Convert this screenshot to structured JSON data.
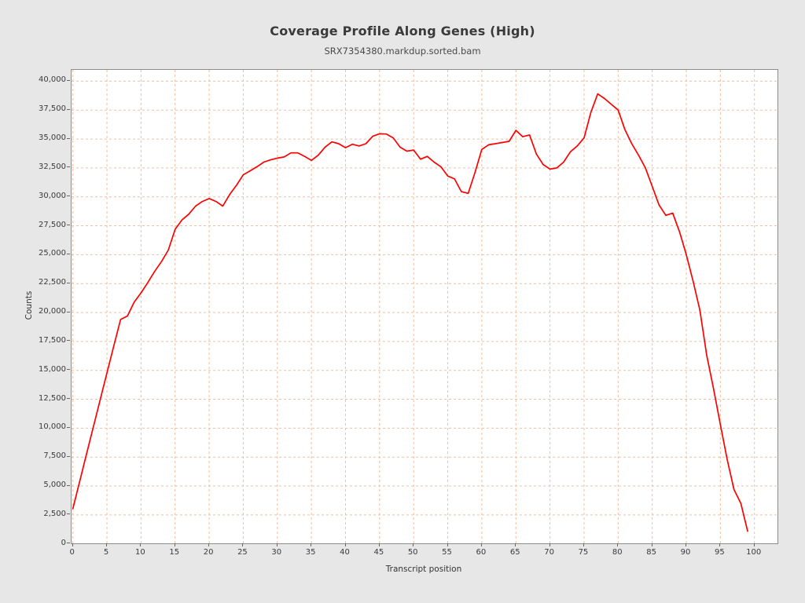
{
  "chart_data": {
    "type": "line",
    "title": "Coverage Profile Along Genes (High)",
    "subtitle": "SRX7354380.markdup.sorted.bam",
    "xlabel": "Transcript position",
    "ylabel": "Counts",
    "xlim": [
      0,
      103
    ],
    "ylim": [
      0,
      40000
    ],
    "grid": true,
    "legend": "none",
    "x_ticks": [
      0,
      5,
      10,
      15,
      20,
      25,
      30,
      35,
      40,
      45,
      50,
      55,
      60,
      65,
      70,
      75,
      80,
      85,
      90,
      95,
      100
    ],
    "y_ticks": [
      0,
      2500,
      5000,
      7500,
      10000,
      12500,
      15000,
      17500,
      20000,
      22500,
      25000,
      27500,
      30000,
      32500,
      35000,
      37500,
      40000
    ],
    "y_tick_labels": [
      "0",
      "2,500",
      "5,000",
      "7,500",
      "10,000",
      "12,500",
      "15,000",
      "17,500",
      "20,000",
      "22,500",
      "25,000",
      "27,500",
      "30,000",
      "32,500",
      "35,000",
      "37,500",
      "40,000"
    ],
    "series": [
      {
        "name": "coverage",
        "x": {
          "start": 0,
          "step": 1,
          "count": 100
        },
        "values": [
          3050,
          5400,
          7750,
          10100,
          12450,
          14800,
          17100,
          19400,
          19700,
          20900,
          21700,
          22600,
          23550,
          24400,
          25400,
          27200,
          28000,
          28500,
          29200,
          29600,
          29850,
          29600,
          29200,
          30200,
          31000,
          31900,
          32250,
          32600,
          33000,
          33200,
          33350,
          33450,
          33800,
          33800,
          33500,
          33150,
          33600,
          34300,
          34750,
          34600,
          34250,
          34550,
          34400,
          34600,
          35250,
          35450,
          35430,
          35100,
          34300,
          33950,
          34050,
          33250,
          33500,
          33000,
          32600,
          31800,
          31550,
          30450,
          30300,
          32100,
          34100,
          34500,
          34600,
          34700,
          34800,
          35750,
          35200,
          35350,
          33700,
          32800,
          32400,
          32500,
          33000,
          33900,
          34400,
          35100,
          37300,
          38900,
          38500,
          38000,
          37500,
          35800,
          34600,
          33600,
          32500,
          30900,
          29300,
          28400,
          28600,
          27000,
          25000,
          22700,
          20200,
          16300,
          13400,
          10300,
          7300,
          4700,
          3500,
          1100
        ]
      }
    ],
    "colors": {
      "line": "#ff0000",
      "grid": "#f5bd98",
      "plot_bg": "#ffffff",
      "page_bg": "#e7e7e7",
      "frame": "#8c8c8c",
      "title_text": "#3a3a3a",
      "tick_text": "#3a3a3a"
    }
  }
}
